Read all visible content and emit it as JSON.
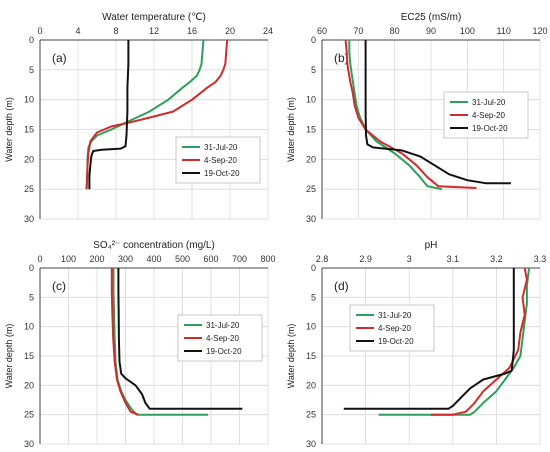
{
  "chart_data": [
    {
      "type": "line",
      "panel_label": "(a)",
      "title": "Water temperature (℃)",
      "ylabel": "Water depth (m)",
      "xlim": [
        0,
        24
      ],
      "xticks": [
        0,
        4,
        8,
        12,
        16,
        20,
        24
      ],
      "ylim": [
        0,
        30
      ],
      "yticks": [
        0,
        5,
        10,
        15,
        20,
        25,
        30
      ],
      "x_axis_position": "top",
      "y_inverted": true,
      "grid": true,
      "legend_position": "bottom-right",
      "series": [
        {
          "name": "31-Jul-20",
          "color": "#2e9e5b",
          "points": [
            [
              17.2,
              0
            ],
            [
              17.1,
              2
            ],
            [
              17.0,
              4
            ],
            [
              16.8,
              5
            ],
            [
              16.5,
              6
            ],
            [
              15.8,
              7
            ],
            [
              15.0,
              8
            ],
            [
              13.5,
              10
            ],
            [
              11.5,
              12
            ],
            [
              9.5,
              13.5
            ],
            [
              7.5,
              15
            ],
            [
              6.0,
              16
            ],
            [
              5.4,
              17
            ],
            [
              5.1,
              18
            ],
            [
              5.0,
              20
            ],
            [
              5.0,
              22
            ],
            [
              4.9,
              25
            ]
          ]
        },
        {
          "name": "4-Sep-20",
          "color": "#d02b2b",
          "points": [
            [
              19.7,
              0
            ],
            [
              19.6,
              2
            ],
            [
              19.5,
              4
            ],
            [
              19.3,
              5
            ],
            [
              19.0,
              6
            ],
            [
              18.5,
              7
            ],
            [
              17.6,
              8
            ],
            [
              16.0,
              10
            ],
            [
              14.0,
              12
            ],
            [
              11.5,
              13
            ],
            [
              9.5,
              13.8
            ],
            [
              7.5,
              14.5
            ],
            [
              6.0,
              15.5
            ],
            [
              5.3,
              17
            ],
            [
              5.1,
              19
            ],
            [
              5.0,
              21
            ],
            [
              4.9,
              25
            ]
          ]
        },
        {
          "name": "19-Oct-20",
          "color": "#111111",
          "points": [
            [
              9.3,
              0
            ],
            [
              9.3,
              4
            ],
            [
              9.2,
              8
            ],
            [
              9.2,
              12
            ],
            [
              9.1,
              16
            ],
            [
              9.0,
              17.8
            ],
            [
              8.5,
              18.2
            ],
            [
              6.5,
              18.4
            ],
            [
              5.6,
              18.6
            ],
            [
              5.4,
              19.5
            ],
            [
              5.3,
              21
            ],
            [
              5.2,
              23
            ],
            [
              5.2,
              25
            ]
          ]
        }
      ]
    },
    {
      "type": "line",
      "panel_label": "(b)",
      "title": "EC25 (mS/m)",
      "ylabel": "Water depth (m)",
      "xlim": [
        60,
        120
      ],
      "xticks": [
        60,
        70,
        80,
        90,
        100,
        110,
        120
      ],
      "ylim": [
        0,
        30
      ],
      "yticks": [
        0,
        5,
        10,
        15,
        20,
        25,
        30
      ],
      "x_axis_position": "top",
      "y_inverted": true,
      "grid": true,
      "legend_position": "top-right",
      "series": [
        {
          "name": "31-Jul-20",
          "color": "#2e9e5b",
          "points": [
            [
              67.5,
              0
            ],
            [
              67.5,
              2
            ],
            [
              67.8,
              4
            ],
            [
              68.0,
              5
            ],
            [
              68.5,
              7
            ],
            [
              69.0,
              9
            ],
            [
              69.5,
              11
            ],
            [
              70.5,
              13
            ],
            [
              72.0,
              15
            ],
            [
              75.0,
              17
            ],
            [
              80.0,
              19
            ],
            [
              84.0,
              21
            ],
            [
              87.0,
              23
            ],
            [
              89.0,
              24.5
            ],
            [
              93.0,
              25
            ]
          ]
        },
        {
          "name": "4-Sep-20",
          "color": "#d02b2b",
          "points": [
            [
              66.5,
              0
            ],
            [
              66.8,
              2
            ],
            [
              67.0,
              4
            ],
            [
              67.2,
              5
            ],
            [
              67.8,
              7
            ],
            [
              68.5,
              9
            ],
            [
              69.0,
              11
            ],
            [
              70.0,
              13
            ],
            [
              72.0,
              15
            ],
            [
              76.0,
              17
            ],
            [
              82.0,
              19
            ],
            [
              86.0,
              21
            ],
            [
              89.0,
              23
            ],
            [
              92.0,
              24.5
            ],
            [
              102.5,
              24.8
            ]
          ]
        },
        {
          "name": "19-Oct-20",
          "color": "#111111",
          "points": [
            [
              72.0,
              0
            ],
            [
              72.0,
              4
            ],
            [
              72.0,
              8
            ],
            [
              72.0,
              12
            ],
            [
              72.1,
              16
            ],
            [
              72.5,
              17.5
            ],
            [
              74.0,
              18
            ],
            [
              82.0,
              18.5
            ],
            [
              87.0,
              19.5
            ],
            [
              91.0,
              21
            ],
            [
              95.0,
              22.5
            ],
            [
              100.0,
              23.5
            ],
            [
              105.0,
              24
            ],
            [
              112.0,
              24
            ]
          ]
        }
      ]
    },
    {
      "type": "line",
      "panel_label": "(c)",
      "title": "SO₄²⁻ concentration (mg/L)",
      "ylabel": "Water depth (m)",
      "xlim": [
        0,
        800
      ],
      "xticks": [
        0,
        100,
        200,
        300,
        400,
        500,
        600,
        700,
        800
      ],
      "ylim": [
        0,
        30
      ],
      "yticks": [
        0,
        5,
        10,
        15,
        20,
        25,
        30
      ],
      "x_axis_position": "top",
      "y_inverted": true,
      "grid": true,
      "legend_position": "right",
      "series": [
        {
          "name": "31-Jul-20",
          "color": "#2e9e5b",
          "points": [
            [
              258,
              0
            ],
            [
              258,
              4
            ],
            [
              260,
              8
            ],
            [
              262,
              12
            ],
            [
              265,
              16
            ],
            [
              272,
              19
            ],
            [
              285,
              21
            ],
            [
              300,
              22.5
            ],
            [
              320,
              24
            ],
            [
              340,
              25
            ],
            [
              590,
              25
            ]
          ]
        },
        {
          "name": "4-Sep-20",
          "color": "#d02b2b",
          "points": [
            [
              252,
              0
            ],
            [
              252,
              4
            ],
            [
              254,
              8
            ],
            [
              257,
              12
            ],
            [
              262,
              16
            ],
            [
              270,
              19
            ],
            [
              282,
              21
            ],
            [
              300,
              23
            ],
            [
              318,
              24.5
            ],
            [
              345,
              25
            ]
          ]
        },
        {
          "name": "19-Oct-20",
          "color": "#111111",
          "points": [
            [
              275,
              0
            ],
            [
              275,
              4
            ],
            [
              276,
              8
            ],
            [
              277,
              12
            ],
            [
              279,
              16
            ],
            [
              285,
              18
            ],
            [
              300,
              18.8
            ],
            [
              335,
              20
            ],
            [
              358,
              21.5
            ],
            [
              370,
              23
            ],
            [
              385,
              24
            ],
            [
              710,
              24
            ]
          ]
        }
      ]
    },
    {
      "type": "line",
      "panel_label": "(d)",
      "title": "pH",
      "ylabel": "Water depth (m)",
      "xlim": [
        2.8,
        3.3
      ],
      "xticks": [
        "2.8",
        "2.9",
        "3",
        "3.1",
        "3.2",
        "3.3"
      ],
      "ylim": [
        0,
        30
      ],
      "yticks": [
        0,
        5,
        10,
        15,
        20,
        25,
        30
      ],
      "x_axis_position": "top",
      "y_inverted": true,
      "grid": true,
      "legend_position": "left",
      "series": [
        {
          "name": "31-Jul-20",
          "color": "#2e9e5b",
          "points": [
            [
              3.275,
              0
            ],
            [
              3.27,
              3
            ],
            [
              3.27,
              6
            ],
            [
              3.265,
              9
            ],
            [
              3.26,
              12
            ],
            [
              3.255,
              15
            ],
            [
              3.24,
              17
            ],
            [
              3.22,
              19
            ],
            [
              3.2,
              21
            ],
            [
              3.17,
              23
            ],
            [
              3.15,
              24.5
            ],
            [
              3.14,
              25
            ],
            [
              2.93,
              25
            ]
          ]
        },
        {
          "name": "4-Sep-20",
          "color": "#d02b2b",
          "points": [
            [
              3.265,
              0
            ],
            [
              3.27,
              2
            ],
            [
              3.26,
              5
            ],
            [
              3.265,
              8
            ],
            [
              3.255,
              11
            ],
            [
              3.25,
              14
            ],
            [
              3.23,
              17
            ],
            [
              3.2,
              19
            ],
            [
              3.17,
              21
            ],
            [
              3.15,
              23
            ],
            [
              3.13,
              24.5
            ],
            [
              3.1,
              25
            ],
            [
              3.05,
              25
            ]
          ]
        },
        {
          "name": "19-Oct-20",
          "color": "#111111",
          "points": [
            [
              3.24,
              0
            ],
            [
              3.24,
              5
            ],
            [
              3.24,
              10
            ],
            [
              3.24,
              14
            ],
            [
              3.235,
              17.5
            ],
            [
              3.22,
              18
            ],
            [
              3.17,
              19
            ],
            [
              3.14,
              20.5
            ],
            [
              3.12,
              22
            ],
            [
              3.1,
              23.5
            ],
            [
              3.09,
              24
            ],
            [
              2.85,
              24
            ]
          ]
        }
      ]
    }
  ]
}
